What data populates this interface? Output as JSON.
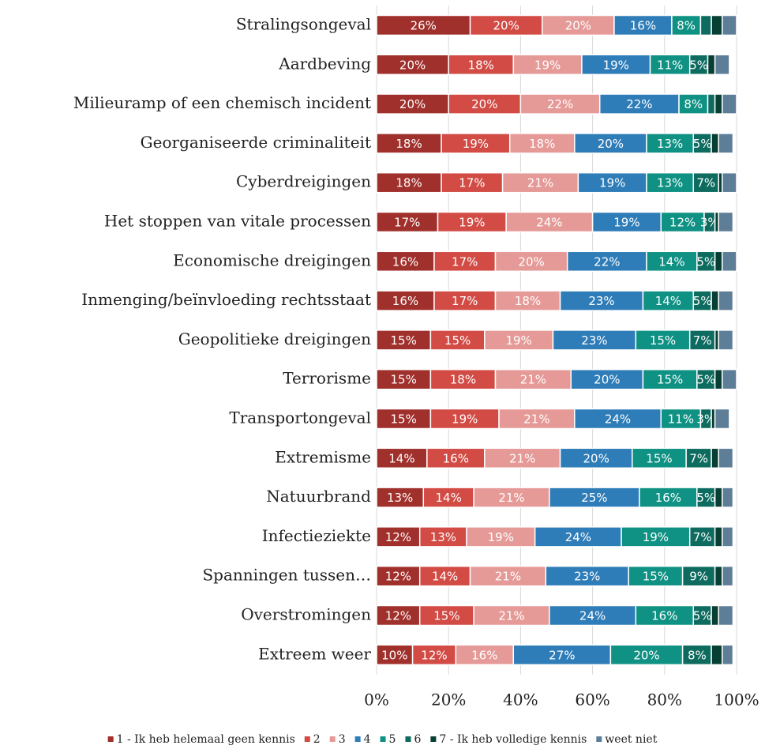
{
  "chart_data": {
    "type": "stacked-barh",
    "categories": [
      "Stralingsongeval",
      "Aardbeving",
      "Milieuramp of een chemisch incident",
      "Georganiseerde criminaliteit",
      "Cyberdreigingen",
      "Het stoppen van vitale processen",
      "Economische dreigingen",
      "Inmenging/beïnvloeding rechtsstaat",
      "Geopolitieke dreigingen",
      "Terrorisme",
      "Transportongeval",
      "Extremisme",
      "Natuurbrand",
      "Infectieziekte",
      "Spanningen tussen…",
      "Overstromingen",
      "Extreem weer"
    ],
    "series": [
      {
        "name": "1 - Ik heb helemaal geen kennis",
        "color": "#a0302c",
        "values": [
          26,
          20,
          20,
          18,
          18,
          17,
          16,
          16,
          15,
          15,
          15,
          14,
          13,
          12,
          12,
          12,
          10
        ],
        "value_labels": [
          "26%",
          "20%",
          "20%",
          "18%",
          "18%",
          "17%",
          "16%",
          "16%",
          "15%",
          "15%",
          "15%",
          "14%",
          "13%",
          "12%",
          "12%",
          "12%",
          "10%"
        ]
      },
      {
        "name": "2",
        "color": "#d24b45",
        "values": [
          20,
          18,
          20,
          19,
          17,
          19,
          17,
          17,
          15,
          18,
          19,
          16,
          14,
          13,
          14,
          15,
          12
        ],
        "value_labels": [
          "20%",
          "18%",
          "20%",
          "19%",
          "17%",
          "19%",
          "17%",
          "17%",
          "15%",
          "18%",
          "19%",
          "16%",
          "14%",
          "13%",
          "14%",
          "15%",
          "12%"
        ]
      },
      {
        "name": "3",
        "color": "#e59a97",
        "values": [
          20,
          19,
          22,
          18,
          21,
          24,
          20,
          18,
          19,
          21,
          21,
          21,
          21,
          19,
          21,
          21,
          16
        ],
        "value_labels": [
          "20%",
          "19%",
          "22%",
          "18%",
          "21%",
          "24%",
          "20%",
          "18%",
          "19%",
          "21%",
          "21%",
          "21%",
          "21%",
          "19%",
          "21%",
          "21%",
          "16%"
        ]
      },
      {
        "name": "4",
        "color": "#2f7db8",
        "values": [
          16,
          19,
          22,
          20,
          19,
          19,
          22,
          23,
          23,
          20,
          24,
          20,
          25,
          24,
          23,
          24,
          27
        ],
        "value_labels": [
          "16%",
          "19%",
          "22%",
          "20%",
          "19%",
          "19%",
          "22%",
          "23%",
          "23%",
          "20%",
          "24%",
          "20%",
          "25%",
          "24%",
          "23%",
          "24%",
          "27%"
        ]
      },
      {
        "name": "5",
        "color": "#0f9183",
        "values": [
          8,
          11,
          8,
          13,
          13,
          12,
          14,
          14,
          15,
          15,
          11,
          15,
          16,
          19,
          15,
          16,
          20
        ],
        "value_labels": [
          "8%",
          "11%",
          "8%",
          "13%",
          "13%",
          "12%",
          "14%",
          "14%",
          "15%",
          "15%",
          "11%",
          "15%",
          "16%",
          "19%",
          "15%",
          "16%",
          "20%"
        ]
      },
      {
        "name": "6",
        "color": "#0d6b5f",
        "values": [
          3,
          5,
          2,
          5,
          7,
          3,
          5,
          5,
          7,
          5,
          3,
          7,
          5,
          7,
          9,
          5,
          8
        ],
        "value_labels": [
          null,
          "5%",
          null,
          "5%",
          "7%",
          "3%",
          "5%",
          "5%",
          "7%",
          "5%",
          "3%",
          "7%",
          "5%",
          "7%",
          "9%",
          "5%",
          "8%"
        ]
      },
      {
        "name": "7 - Ik heb volledige kennis",
        "color": "#083f35",
        "values": [
          3,
          2,
          2,
          2,
          1,
          1,
          2,
          2,
          1,
          2,
          1,
          2,
          2,
          2,
          2,
          2,
          3
        ],
        "value_labels": [
          null,
          null,
          null,
          null,
          null,
          null,
          null,
          null,
          null,
          null,
          null,
          null,
          null,
          null,
          null,
          null,
          null
        ]
      },
      {
        "name": "weet niet",
        "color": "#5e7e98",
        "values": [
          4,
          4,
          4,
          4,
          4,
          4,
          4,
          4,
          4,
          4,
          4,
          4,
          3,
          3,
          3,
          4,
          3
        ],
        "value_labels": [
          null,
          null,
          null,
          null,
          null,
          null,
          null,
          null,
          null,
          null,
          null,
          null,
          null,
          null,
          null,
          null,
          null
        ]
      }
    ],
    "xlim": [
      0,
      100
    ],
    "xticks": [
      {
        "value": 0,
        "label": "0%"
      },
      {
        "value": 20,
        "label": "20%"
      },
      {
        "value": 40,
        "label": "40%"
      },
      {
        "value": 60,
        "label": "60%"
      },
      {
        "value": 80,
        "label": "80%"
      },
      {
        "value": 100,
        "label": "100%"
      }
    ],
    "grid": true,
    "legend": "bottom"
  }
}
